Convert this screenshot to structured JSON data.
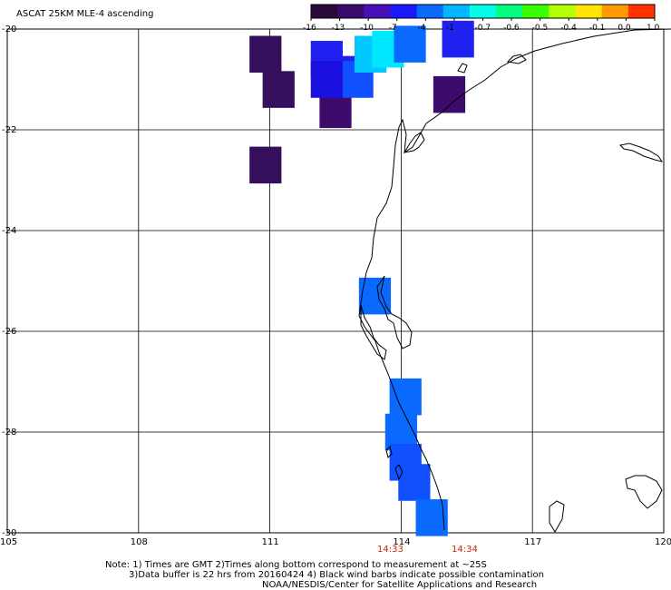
{
  "header": {
    "title": "ASCAT 25KM MLE-4 ascending"
  },
  "colorbar": {
    "tick_labels": [
      "-16",
      "-13",
      "-10",
      "-7",
      "-4",
      "-1",
      "-0.7",
      "-0.6",
      "-0.5",
      "-0.4",
      "-0.1",
      "0.0",
      "1.0"
    ],
    "colors": [
      "#2a0a3a",
      "#3a0a6a",
      "#4a10b8",
      "#1a1aff",
      "#0a6aff",
      "#00b8ff",
      "#00ffe6",
      "#00ff80",
      "#3aff00",
      "#b4ff00",
      "#ffe600",
      "#ff9a00",
      "#ff3200"
    ]
  },
  "map": {
    "lat_labels": [
      "-20",
      "-22",
      "-24",
      "-26",
      "-28",
      "-30"
    ],
    "lon_labels": [
      "105",
      "108",
      "111",
      "114",
      "117",
      "120"
    ],
    "time_labels": [
      "14:33",
      "14:34"
    ],
    "time_color": "#cc2200",
    "coastline_color": "#000000",
    "grid_color": "#000000"
  },
  "footer": {
    "note_line1": "Note: 1) Times are GMT 2)Times along bottom correspond to measurement at ~25S",
    "note_line2": "3)Data buffer is 22 hrs from 20160424 4) Black wind barbs indicate possible contamination",
    "credit": "NOAA/NESDIS/Center for Satellite Applications and Research"
  },
  "swath": {
    "cells": [
      {
        "lon": 110.9,
        "lat": -20.5,
        "value": -14
      },
      {
        "lon": 111.2,
        "lat": -21.2,
        "value": -14
      },
      {
        "lon": 112.5,
        "lat": -21.6,
        "value": -13
      },
      {
        "lon": 110.9,
        "lat": -22.7,
        "value": -15
      },
      {
        "lon": 115.1,
        "lat": -21.3,
        "value": -13
      },
      {
        "lon": 112.3,
        "lat": -20.6,
        "value": -9
      },
      {
        "lon": 112.6,
        "lat": -20.9,
        "value": -8
      },
      {
        "lon": 113.0,
        "lat": -21.0,
        "value": -7
      },
      {
        "lon": 112.3,
        "lat": -21.0,
        "value": -10
      },
      {
        "lon": 113.3,
        "lat": -20.5,
        "value": -3
      },
      {
        "lon": 113.7,
        "lat": -20.4,
        "value": -2
      },
      {
        "lon": 114.2,
        "lat": -20.3,
        "value": -4
      },
      {
        "lon": 115.3,
        "lat": -20.2,
        "value": -8
      },
      {
        "lon": 113.4,
        "lat": -25.3,
        "value": -4
      },
      {
        "lon": 114.1,
        "lat": -27.3,
        "value": -4
      },
      {
        "lon": 114.0,
        "lat": -28.0,
        "value": -5
      },
      {
        "lon": 114.1,
        "lat": -28.6,
        "value": -6
      },
      {
        "lon": 114.3,
        "lat": -29.0,
        "value": -6
      },
      {
        "lon": 114.7,
        "lat": -29.7,
        "value": -4
      }
    ]
  }
}
